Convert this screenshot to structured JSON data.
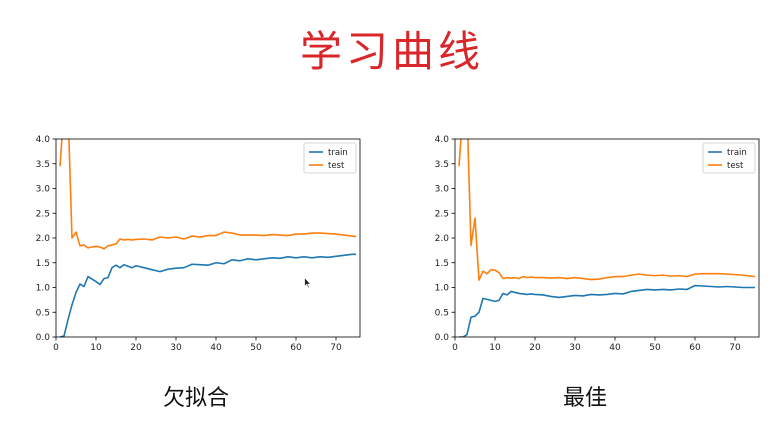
{
  "slide": {
    "title": "学习曲线",
    "title_color": "#d9262b"
  },
  "panels": [
    {
      "caption": "欠拟合"
    },
    {
      "caption": "最佳"
    }
  ],
  "chart_data": [
    {
      "type": "line",
      "title": "",
      "xlabel": "",
      "ylabel": "",
      "xlim": [
        0,
        76
      ],
      "ylim": [
        0,
        4.0
      ],
      "xticks": [
        0,
        10,
        20,
        30,
        40,
        50,
        60,
        70
      ],
      "yticks": [
        0.0,
        0.5,
        1.0,
        1.5,
        2.0,
        2.5,
        3.0,
        3.5,
        4.0
      ],
      "grid": false,
      "legend": "top-right",
      "series": [
        {
          "name": "train",
          "color": "#1f77b4",
          "x": [
            1,
            2,
            3,
            4,
            5,
            6,
            7,
            8,
            9,
            10,
            11,
            12,
            13,
            14,
            15,
            16,
            17,
            18,
            19,
            20,
            22,
            24,
            26,
            28,
            30,
            32,
            34,
            36,
            38,
            40,
            42,
            44,
            46,
            48,
            50,
            52,
            54,
            56,
            58,
            60,
            62,
            64,
            66,
            68,
            70,
            72,
            74,
            75
          ],
          "y": [
            0.0,
            0.02,
            0.35,
            0.65,
            0.9,
            1.07,
            1.02,
            1.22,
            1.17,
            1.12,
            1.06,
            1.18,
            1.2,
            1.4,
            1.45,
            1.4,
            1.46,
            1.43,
            1.4,
            1.44,
            1.4,
            1.36,
            1.32,
            1.37,
            1.39,
            1.4,
            1.47,
            1.46,
            1.45,
            1.5,
            1.48,
            1.56,
            1.54,
            1.58,
            1.56,
            1.58,
            1.6,
            1.59,
            1.62,
            1.6,
            1.62,
            1.6,
            1.62,
            1.61,
            1.63,
            1.65,
            1.67,
            1.67
          ]
        },
        {
          "name": "test",
          "color": "#ff7f0e",
          "x": [
            1,
            2,
            3,
            4,
            5,
            6,
            7,
            8,
            9,
            10,
            11,
            12,
            13,
            14,
            15,
            16,
            17,
            18,
            19,
            20,
            22,
            24,
            26,
            28,
            30,
            32,
            34,
            36,
            38,
            40,
            42,
            44,
            46,
            48,
            50,
            52,
            54,
            56,
            58,
            60,
            62,
            64,
            66,
            68,
            70,
            72,
            74,
            75
          ],
          "y": [
            3.45,
            4.6,
            4.6,
            2.0,
            2.12,
            1.84,
            1.86,
            1.8,
            1.82,
            1.83,
            1.82,
            1.78,
            1.84,
            1.86,
            1.88,
            1.98,
            1.96,
            1.97,
            1.96,
            1.97,
            1.98,
            1.96,
            2.02,
            2.0,
            2.02,
            1.98,
            2.04,
            2.02,
            2.05,
            2.05,
            2.12,
            2.1,
            2.06,
            2.06,
            2.06,
            2.05,
            2.07,
            2.06,
            2.05,
            2.08,
            2.08,
            2.1,
            2.1,
            2.09,
            2.08,
            2.06,
            2.04,
            2.03
          ]
        }
      ]
    },
    {
      "type": "line",
      "title": "",
      "xlabel": "",
      "ylabel": "",
      "xlim": [
        0,
        76
      ],
      "ylim": [
        0,
        4.0
      ],
      "xticks": [
        0,
        10,
        20,
        30,
        40,
        50,
        60,
        70
      ],
      "yticks": [
        0.0,
        0.5,
        1.0,
        1.5,
        2.0,
        2.5,
        3.0,
        3.5,
        4.0
      ],
      "grid": false,
      "legend": "top-right",
      "series": [
        {
          "name": "train",
          "color": "#1f77b4",
          "x": [
            1,
            2,
            3,
            4,
            5,
            6,
            7,
            8,
            9,
            10,
            11,
            12,
            13,
            14,
            15,
            16,
            17,
            18,
            19,
            20,
            22,
            24,
            26,
            28,
            30,
            32,
            34,
            36,
            38,
            40,
            42,
            44,
            46,
            48,
            50,
            52,
            54,
            56,
            58,
            60,
            62,
            64,
            66,
            68,
            70,
            72,
            74,
            75
          ],
          "y": [
            0.0,
            0.0,
            0.05,
            0.4,
            0.42,
            0.5,
            0.78,
            0.76,
            0.74,
            0.72,
            0.74,
            0.88,
            0.85,
            0.92,
            0.9,
            0.88,
            0.87,
            0.86,
            0.87,
            0.86,
            0.85,
            0.82,
            0.8,
            0.82,
            0.84,
            0.83,
            0.86,
            0.85,
            0.86,
            0.88,
            0.87,
            0.92,
            0.94,
            0.96,
            0.95,
            0.96,
            0.95,
            0.97,
            0.96,
            1.04,
            1.03,
            1.02,
            1.01,
            1.02,
            1.01,
            1.0,
            1.0,
            1.0
          ]
        },
        {
          "name": "test",
          "color": "#ff7f0e",
          "x": [
            1,
            2,
            3,
            4,
            5,
            6,
            7,
            8,
            9,
            10,
            11,
            12,
            13,
            14,
            15,
            16,
            17,
            18,
            19,
            20,
            22,
            24,
            26,
            28,
            30,
            32,
            34,
            36,
            38,
            40,
            42,
            44,
            46,
            48,
            50,
            52,
            54,
            56,
            58,
            60,
            62,
            64,
            66,
            68,
            70,
            72,
            74,
            75
          ],
          "y": [
            3.45,
            4.6,
            4.6,
            1.85,
            2.4,
            1.15,
            1.33,
            1.28,
            1.36,
            1.35,
            1.3,
            1.18,
            1.2,
            1.19,
            1.2,
            1.18,
            1.22,
            1.2,
            1.21,
            1.2,
            1.2,
            1.19,
            1.2,
            1.18,
            1.2,
            1.18,
            1.16,
            1.17,
            1.2,
            1.22,
            1.22,
            1.25,
            1.27,
            1.25,
            1.24,
            1.25,
            1.23,
            1.24,
            1.22,
            1.27,
            1.28,
            1.28,
            1.28,
            1.27,
            1.26,
            1.25,
            1.23,
            1.22
          ]
        }
      ]
    }
  ]
}
